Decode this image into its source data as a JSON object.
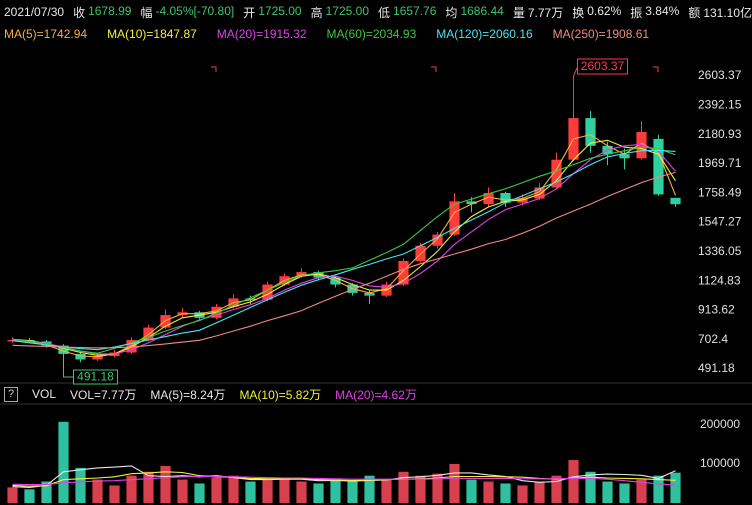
{
  "header": {
    "date": "2021/07/30",
    "items": [
      {
        "label": "收",
        "value": "1678.99",
        "color": "#3ec46c"
      },
      {
        "label": "幅",
        "value": "-4.05%[-70.80]",
        "color": "#3ec46c"
      },
      {
        "label": "开",
        "value": "1725.00",
        "color": "#3ec46c"
      },
      {
        "label": "高",
        "value": "1725.00",
        "color": "#3ec46c"
      },
      {
        "label": "低",
        "value": "1657.76",
        "color": "#3ec46c"
      },
      {
        "label": "均",
        "value": "1686.44",
        "color": "#3ec46c"
      },
      {
        "label": "量",
        "value": "7.77万",
        "color": "#e8e8e8"
      },
      {
        "label": "换",
        "value": "0.62%",
        "color": "#e8e8e8"
      },
      {
        "label": "振",
        "value": "3.84%",
        "color": "#e8e8e8"
      },
      {
        "label": "额",
        "value": "131.10亿",
        "color": "#e8e8e8"
      }
    ]
  },
  "chart_data": [
    {
      "type": "candlestick",
      "up_color": "#ff3b3b",
      "down_color": "#2fd0a0",
      "grid": false,
      "ylim": [
        397.5,
        2848.5
      ],
      "yticks": [
        491.18,
        702.4,
        913.62,
        1124.83,
        1336.05,
        1547.27,
        1758.49,
        1969.71,
        2180.93,
        2392.15,
        2603.37
      ],
      "open": [
        690,
        700,
        690,
        660,
        600,
        560,
        585,
        610,
        700,
        790,
        880,
        900,
        860,
        940,
        1000,
        990,
        1100,
        1160,
        1190,
        1150,
        1100,
        1040,
        1020,
        1100,
        1270,
        1380,
        1460,
        1700,
        1680,
        1760,
        1690,
        1720,
        1800,
        2000,
        2300,
        2100,
        2040,
        2010,
        2150,
        1725
      ],
      "high": [
        720,
        715,
        700,
        670,
        620,
        600,
        630,
        720,
        810,
        920,
        930,
        910,
        960,
        1030,
        1020,
        1120,
        1180,
        1220,
        1200,
        1160,
        1110,
        1060,
        1120,
        1290,
        1400,
        1480,
        1760,
        1730,
        1800,
        1770,
        1750,
        1830,
        2050,
        2603.37,
        2350,
        2130,
        2080,
        2280,
        2180,
        1725
      ],
      "low": [
        680,
        675,
        645,
        491.18,
        540,
        550,
        575,
        600,
        690,
        780,
        860,
        840,
        850,
        930,
        960,
        980,
        1090,
        1150,
        1130,
        1080,
        1020,
        960,
        1010,
        1090,
        1260,
        1360,
        1450,
        1620,
        1660,
        1660,
        1670,
        1710,
        1790,
        1990,
        2050,
        1960,
        1930,
        2000,
        1740,
        1657.76
      ],
      "close": [
        700,
        690,
        660,
        600,
        560,
        585,
        610,
        700,
        790,
        880,
        900,
        860,
        940,
        1000,
        990,
        1100,
        1160,
        1190,
        1150,
        1100,
        1040,
        1020,
        1100,
        1270,
        1380,
        1460,
        1700,
        1680,
        1760,
        1690,
        1720,
        1800,
        2000,
        2300,
        2100,
        2040,
        2010,
        2200,
        1749.79,
        1678.99
      ],
      "max_label_color": "#ff3b4e",
      "min_label_color": "#3ec46c",
      "series": [
        {
          "name": "MA(5)=1742.94",
          "color": "#f5b040",
          "values": [
            700,
            690,
            665,
            620,
            585,
            580,
            600,
            660,
            740,
            840,
            890,
            890,
            910,
            970,
            990,
            1060,
            1130,
            1170,
            1170,
            1130,
            1070,
            1040,
            1070,
            1200,
            1320,
            1430,
            1620,
            1680,
            1730,
            1710,
            1720,
            1770,
            1930,
            2150,
            2180,
            2100,
            2040,
            2120,
            2050,
            1742.94
          ]
        },
        {
          "name": "MA(10)=1847.87",
          "color": "#f2f03a",
          "values": [
            705,
            695,
            675,
            640,
            610,
            590,
            600,
            650,
            720,
            800,
            860,
            880,
            900,
            940,
            975,
            1030,
            1100,
            1160,
            1175,
            1150,
            1100,
            1060,
            1060,
            1130,
            1230,
            1340,
            1480,
            1590,
            1660,
            1700,
            1710,
            1750,
            1850,
            2000,
            2120,
            2140,
            2090,
            2080,
            2040,
            1847.87
          ]
        },
        {
          "name": "MA(20)=1915.32",
          "color": "#e040e8",
          "values": [
            700,
            690,
            675,
            650,
            620,
            600,
            600,
            630,
            680,
            740,
            800,
            845,
            880,
            920,
            955,
            1000,
            1060,
            1110,
            1150,
            1160,
            1130,
            1090,
            1080,
            1110,
            1180,
            1270,
            1390,
            1480,
            1570,
            1640,
            1680,
            1720,
            1790,
            1900,
            2000,
            2070,
            2100,
            2110,
            2060,
            1915.32
          ]
        },
        {
          "name": "MA(60)=2034.93",
          "color": "#3cc83c",
          "values": [
            705,
            690,
            670,
            645,
            620,
            605,
            640,
            680,
            720,
            765,
            805,
            840,
            895,
            950,
            1005,
            1060,
            1115,
            1165,
            1185,
            1200,
            1220,
            1275,
            1330,
            1390,
            1490,
            1590,
            1680,
            1715,
            1755,
            1790,
            1835,
            1880,
            1920,
            1965,
            2010,
            2040,
            2065,
            2090,
            2080,
            2034.93
          ]
        },
        {
          "name": "MA(120)=2060.16",
          "color": "#48e4f0",
          "values": [
            695,
            680,
            665,
            650,
            638,
            630,
            650,
            675,
            700,
            725,
            750,
            770,
            825,
            880,
            935,
            990,
            1045,
            1095,
            1135,
            1170,
            1210,
            1245,
            1285,
            1320,
            1380,
            1440,
            1505,
            1565,
            1625,
            1690,
            1740,
            1790,
            1840,
            1900,
            1965,
            2020,
            2045,
            2065,
            2068,
            2060.16
          ]
        },
        {
          "name": "MA(250)=1908.61",
          "color": "#f08a80",
          "values": [
            662,
            658,
            654,
            650,
            646,
            643,
            645,
            650,
            660,
            672,
            685,
            698,
            730,
            765,
            800,
            840,
            875,
            912,
            965,
            1015,
            1065,
            1110,
            1160,
            1210,
            1250,
            1285,
            1320,
            1355,
            1395,
            1425,
            1470,
            1520,
            1580,
            1630,
            1680,
            1735,
            1785,
            1835,
            1875,
            1908.61
          ]
        }
      ]
    },
    {
      "type": "bar",
      "help": "?",
      "title": "VOL",
      "current": "VOL=7.77万",
      "current_color": "#e8e8e8",
      "up_color": "#d9404e",
      "down_color": "#2fc0a0",
      "ylim": [
        0,
        251000
      ],
      "yticks": [
        100000,
        200000
      ],
      "values": [
        40000,
        35000,
        55000,
        208000,
        90000,
        60000,
        45000,
        70000,
        80000,
        95000,
        60000,
        50000,
        65000,
        70000,
        55000,
        60000,
        65000,
        55000,
        50000,
        60000,
        55000,
        70000,
        60000,
        80000,
        70000,
        75000,
        100000,
        60000,
        55000,
        50000,
        45000,
        55000,
        70000,
        110000,
        80000,
        55000,
        50000,
        60000,
        70000,
        77700
      ],
      "series": [
        {
          "name": "MA(5)=8.24万",
          "color": "#e8e8e8",
          "values": [
            42000,
            40000,
            45000,
            80000,
            85000,
            90000,
            92000,
            95000,
            70000,
            68000,
            70000,
            67000,
            70000,
            65000,
            60000,
            60000,
            61000,
            61000,
            57000,
            58000,
            56000,
            58000,
            59000,
            65000,
            67000,
            71000,
            77000,
            77000,
            72000,
            68000,
            57000,
            53000,
            55000,
            67000,
            72000,
            74000,
            73000,
            71000,
            63000,
            82400
          ]
        },
        {
          "name": "MA(10)=5.82万",
          "color": "#f2f03a",
          "values": [
            45000,
            43000,
            44000,
            60000,
            62000,
            64000,
            67000,
            75000,
            77000,
            80000,
            78000,
            70000,
            67000,
            66000,
            63000,
            62000,
            63000,
            62000,
            60000,
            59000,
            58000,
            59000,
            60000,
            61000,
            62000,
            64000,
            68000,
            68000,
            68000,
            67000,
            66000,
            63000,
            61000,
            64000,
            66000,
            64000,
            63000,
            62000,
            60000,
            58200
          ]
        },
        {
          "name": "MA(20)=4.62万",
          "color": "#e040e8",
          "values": [
            48000,
            47000,
            47000,
            52000,
            54000,
            56000,
            57000,
            60000,
            62000,
            65000,
            67000,
            68000,
            68000,
            67000,
            66000,
            65000,
            64000,
            64000,
            63000,
            62000,
            61000,
            61000,
            61000,
            61000,
            61000,
            62000,
            63000,
            63000,
            63000,
            63000,
            62000,
            62000,
            62000,
            63000,
            63000,
            61000,
            57000,
            53000,
            49000,
            46200
          ]
        }
      ]
    }
  ]
}
